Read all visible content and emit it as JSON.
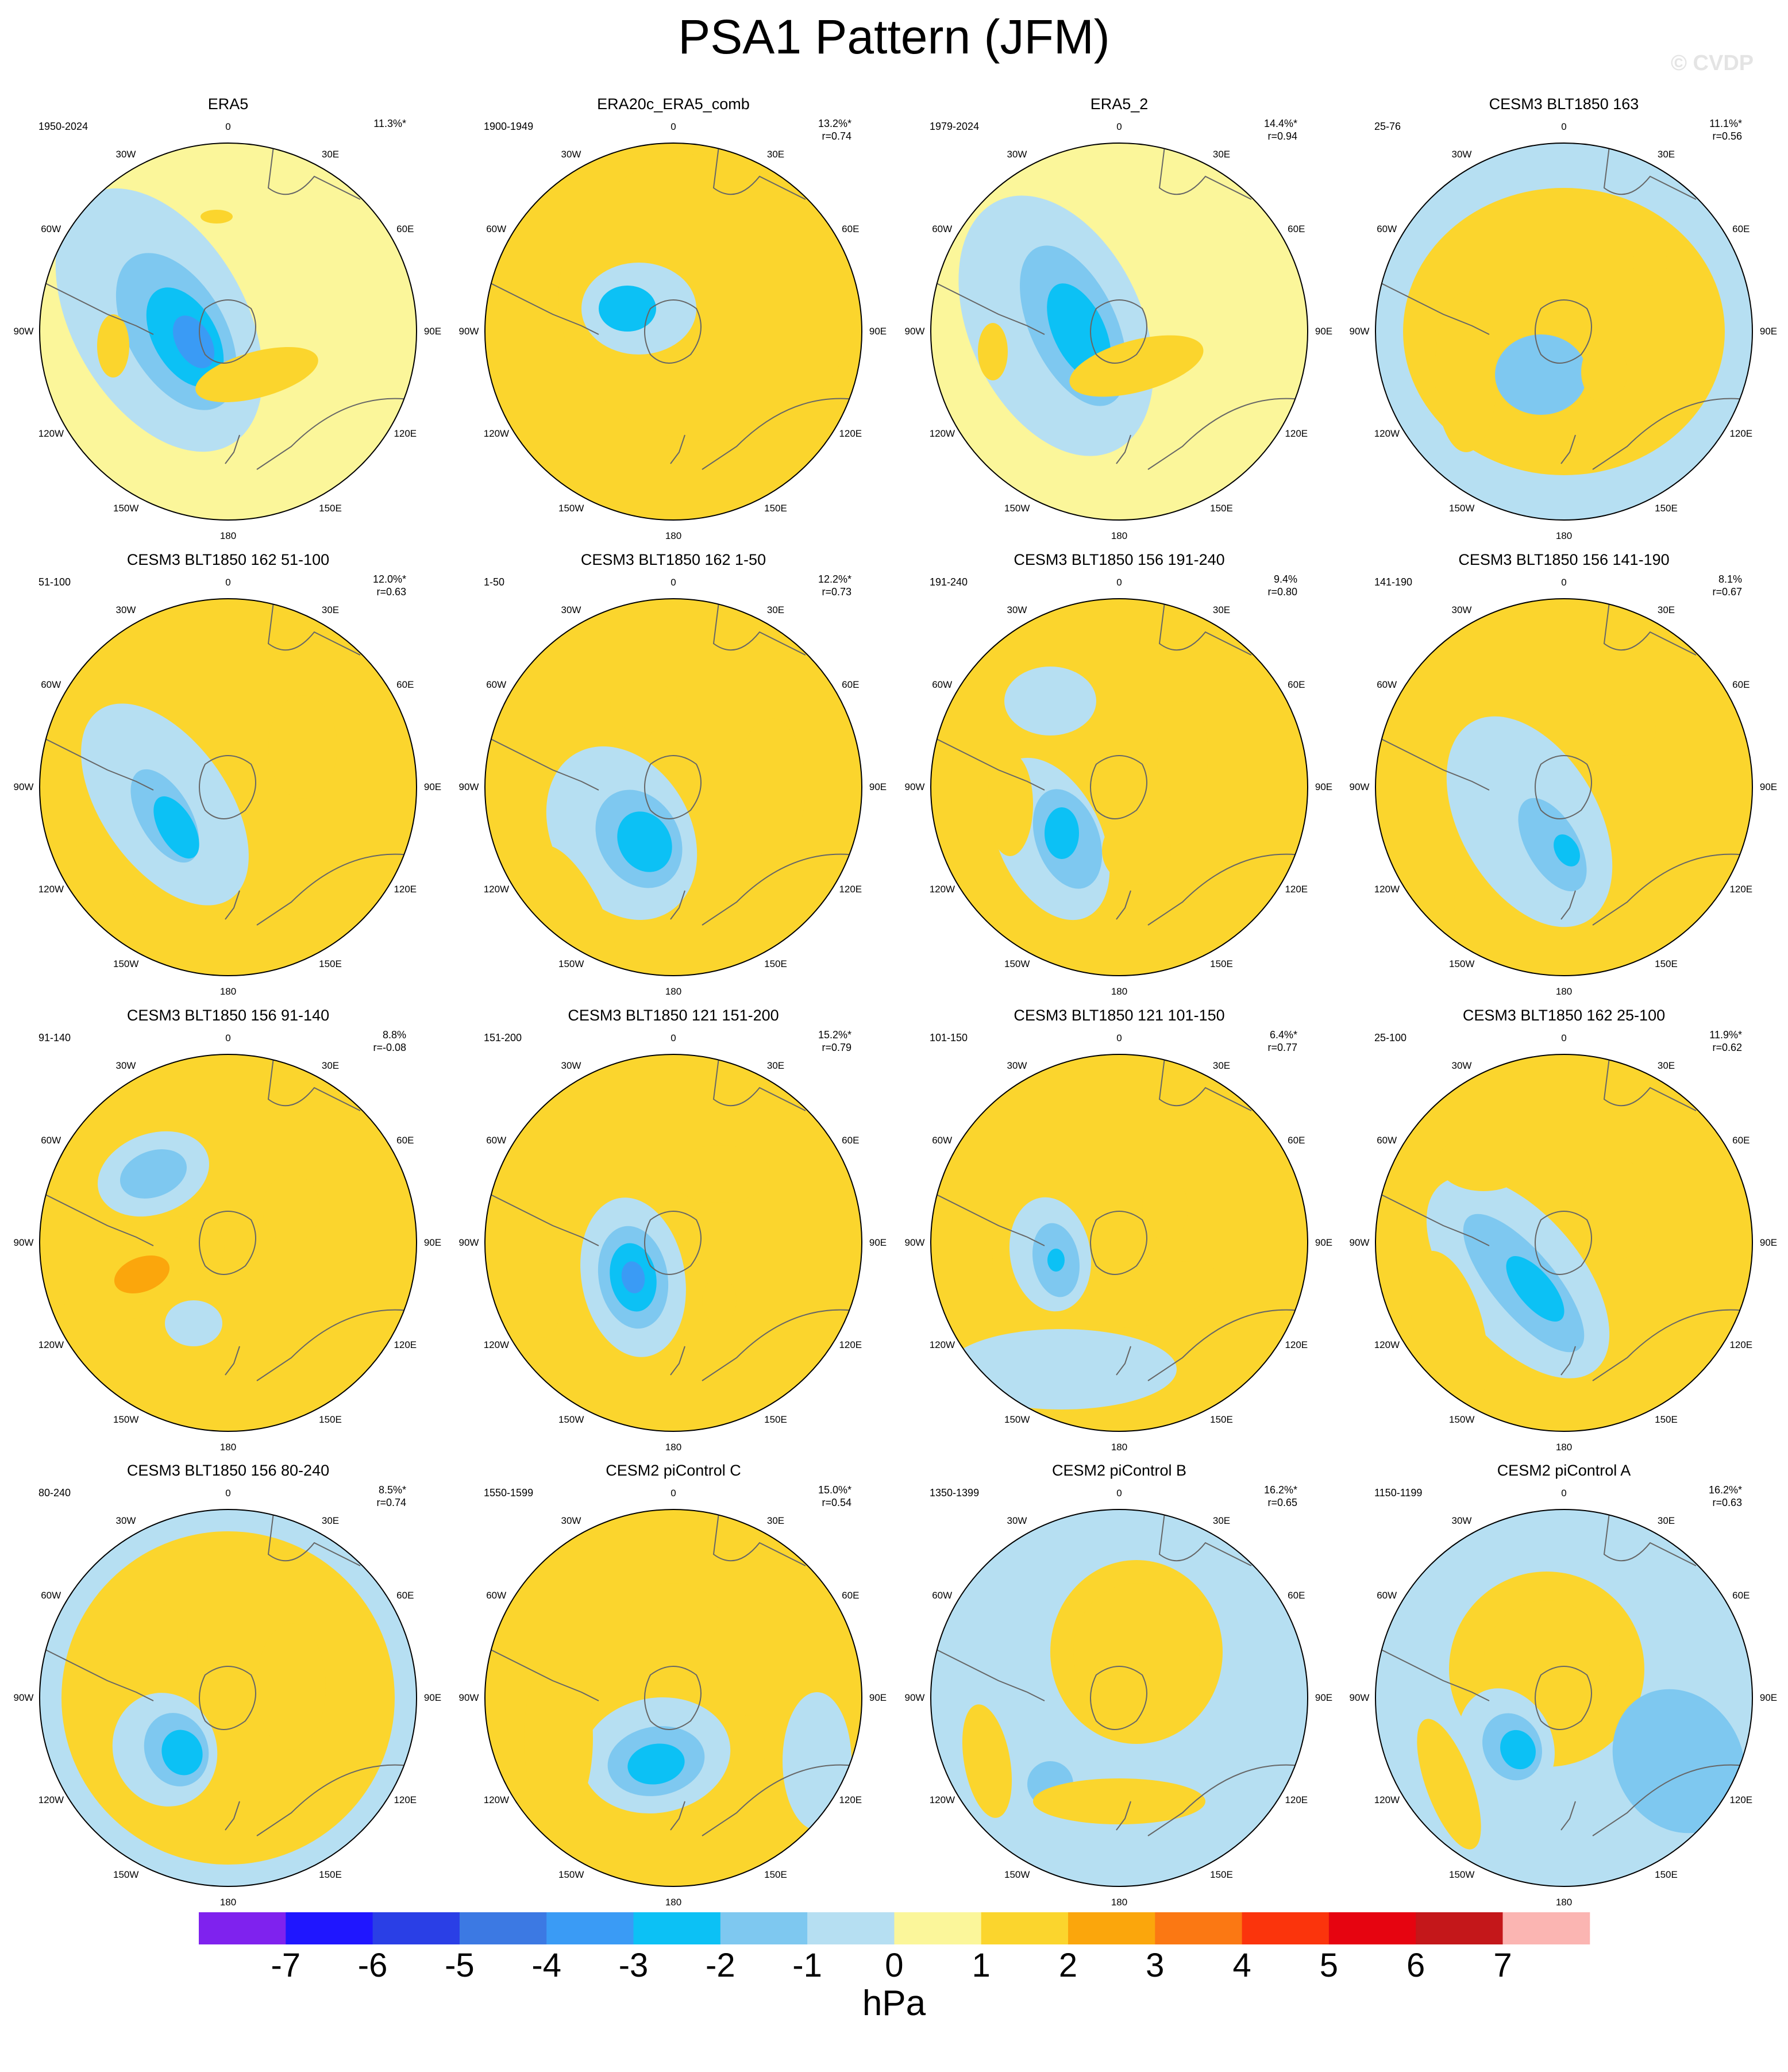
{
  "title": "PSA1 Pattern (JFM)",
  "watermark": "© CVDP",
  "units": "hPa",
  "colors": {
    "levels": [
      "#7f22ee",
      "#1f16ff",
      "#2a3fe6",
      "#3c79e3",
      "#3a9bf5",
      "#0cc1f5",
      "#7ec8f0",
      "#b6dff2",
      "#fbf69a",
      "#fbd52d",
      "#fba60c",
      "#fb7813",
      "#fb340c",
      "#e60410",
      "#c4171a",
      "#fbb5b2"
    ],
    "land_outline": "#666666"
  },
  "chart_data": {
    "type": "polar-contour-map",
    "variable": "PSA1 Pattern (JFM)",
    "units": "hPa",
    "colorbar": {
      "ticks": [
        "-7",
        "-6",
        "-5",
        "-4",
        "-3",
        "-2",
        "-1",
        "0",
        "1",
        "2",
        "3",
        "4",
        "5",
        "6",
        "7"
      ],
      "bounds": [
        -7,
        7
      ],
      "n_colors": 16
    },
    "longitude_labels": [
      "0",
      "30E",
      "60E",
      "90E",
      "120E",
      "150E",
      "180",
      "150W",
      "120W",
      "90W",
      "60W",
      "30W"
    ],
    "panels": [
      {
        "title": "ERA5",
        "period": "1950-2024",
        "pct": "11.3%*",
        "r": ""
      },
      {
        "title": "ERA20c_ERA5_comb",
        "period": "1900-1949",
        "pct": "13.2%*",
        "r": "r=0.74"
      },
      {
        "title": "ERA5_2",
        "period": "1979-2024",
        "pct": "14.4%*",
        "r": "r=0.94"
      },
      {
        "title": "CESM3 BLT1850 163",
        "period": "25-76",
        "pct": "11.1%*",
        "r": "r=0.56"
      },
      {
        "title": "CESM3 BLT1850 162 51-100",
        "period": "51-100",
        "pct": "12.0%*",
        "r": "r=0.63"
      },
      {
        "title": "CESM3 BLT1850 162 1-50",
        "period": "1-50",
        "pct": "12.2%*",
        "r": "r=0.73"
      },
      {
        "title": "CESM3 BLT1850 156 191-240",
        "period": "191-240",
        "pct": "9.4%",
        "r": "r=0.80"
      },
      {
        "title": "CESM3 BLT1850 156 141-190",
        "period": "141-190",
        "pct": "8.1%",
        "r": "r=0.67"
      },
      {
        "title": "CESM3 BLT1850 156 91-140",
        "period": "91-140",
        "pct": "8.8%",
        "r": "r=-0.08"
      },
      {
        "title": "CESM3 BLT1850 121 151-200",
        "period": "151-200",
        "pct": "15.2%*",
        "r": "r=0.79"
      },
      {
        "title": "CESM3 BLT1850 121 101-150",
        "period": "101-150",
        "pct": "6.4%*",
        "r": "r=0.77"
      },
      {
        "title": "CESM3 BLT1850 162 25-100",
        "period": "25-100",
        "pct": "11.9%*",
        "r": "r=0.62"
      },
      {
        "title": "CESM3 BLT1850 156 80-240",
        "period": "80-240",
        "pct": "8.5%*",
        "r": "r=0.74"
      },
      {
        "title": "CESM2 piControl C",
        "period": "1550-1599",
        "pct": "15.0%*",
        "r": "r=0.54"
      },
      {
        "title": "CESM2 piControl B",
        "period": "1350-1399",
        "pct": "16.2%*",
        "r": "r=0.65"
      },
      {
        "title": "CESM2 piControl A",
        "period": "1150-1199",
        "pct": "16.2%*",
        "r": "r=0.63"
      }
    ]
  }
}
